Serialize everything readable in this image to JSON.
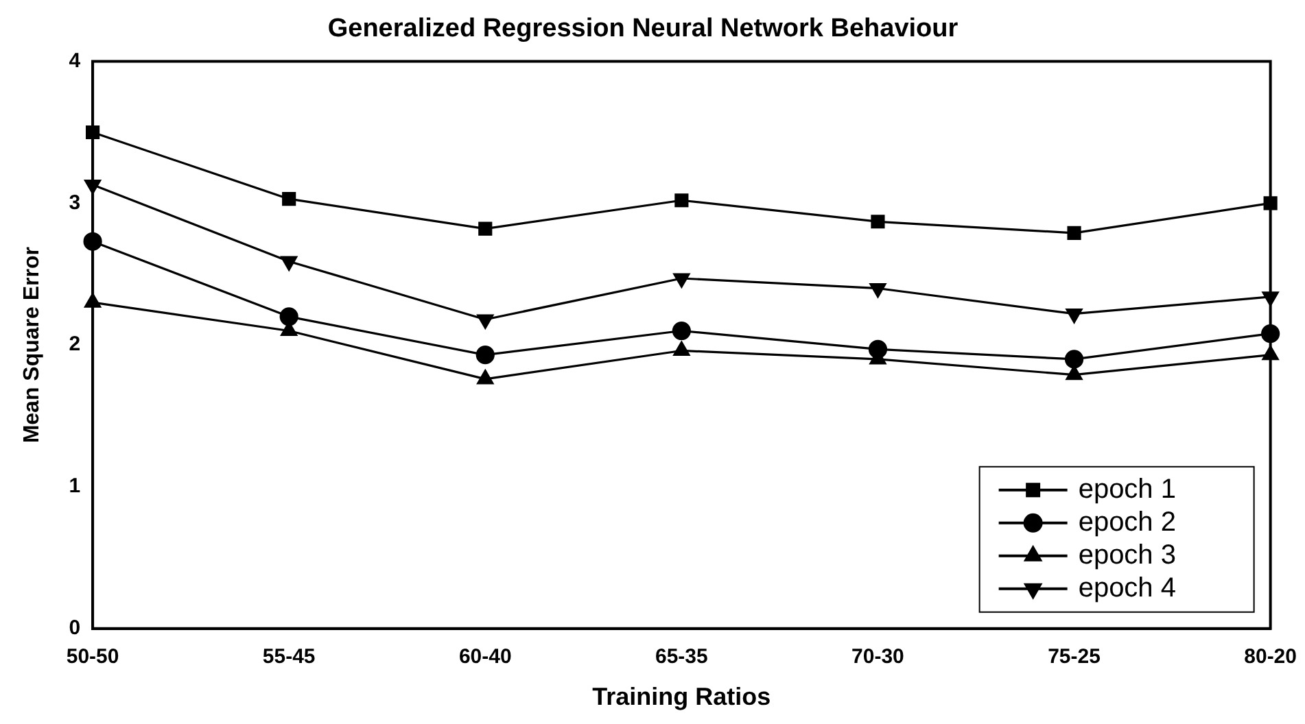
{
  "chart_data": {
    "type": "line",
    "title": "Generalized Regression Neural Network Behaviour",
    "xlabel": "Training Ratios",
    "ylabel": "Mean Square Error",
    "categories": [
      "50-50",
      "55-45",
      "60-40",
      "65-35",
      "70-30",
      "75-25",
      "80-20"
    ],
    "series": [
      {
        "name": "epoch 1",
        "color": "#000000",
        "marker": "square",
        "values": [
          3.5,
          3.03,
          2.82,
          3.02,
          2.87,
          2.79,
          3.0
        ]
      },
      {
        "name": "epoch 2",
        "color": "#000000",
        "marker": "circle",
        "values": [
          2.73,
          2.2,
          1.93,
          2.1,
          1.97,
          1.9,
          2.08
        ]
      },
      {
        "name": "epoch 3",
        "color": "#000000",
        "marker": "triangle",
        "values": [
          2.3,
          2.1,
          1.76,
          1.96,
          1.9,
          1.79,
          1.93
        ]
      },
      {
        "name": "epoch 4",
        "color": "#000000",
        "marker": "triangle-down",
        "values": [
          3.13,
          2.59,
          2.18,
          2.47,
          2.4,
          2.22,
          2.34
        ]
      }
    ],
    "ylim": [
      0,
      4
    ],
    "yticks": [
      0,
      1,
      2,
      3,
      4
    ],
    "grid": false,
    "legend": "bottom right",
    "line_style": "solid"
  }
}
